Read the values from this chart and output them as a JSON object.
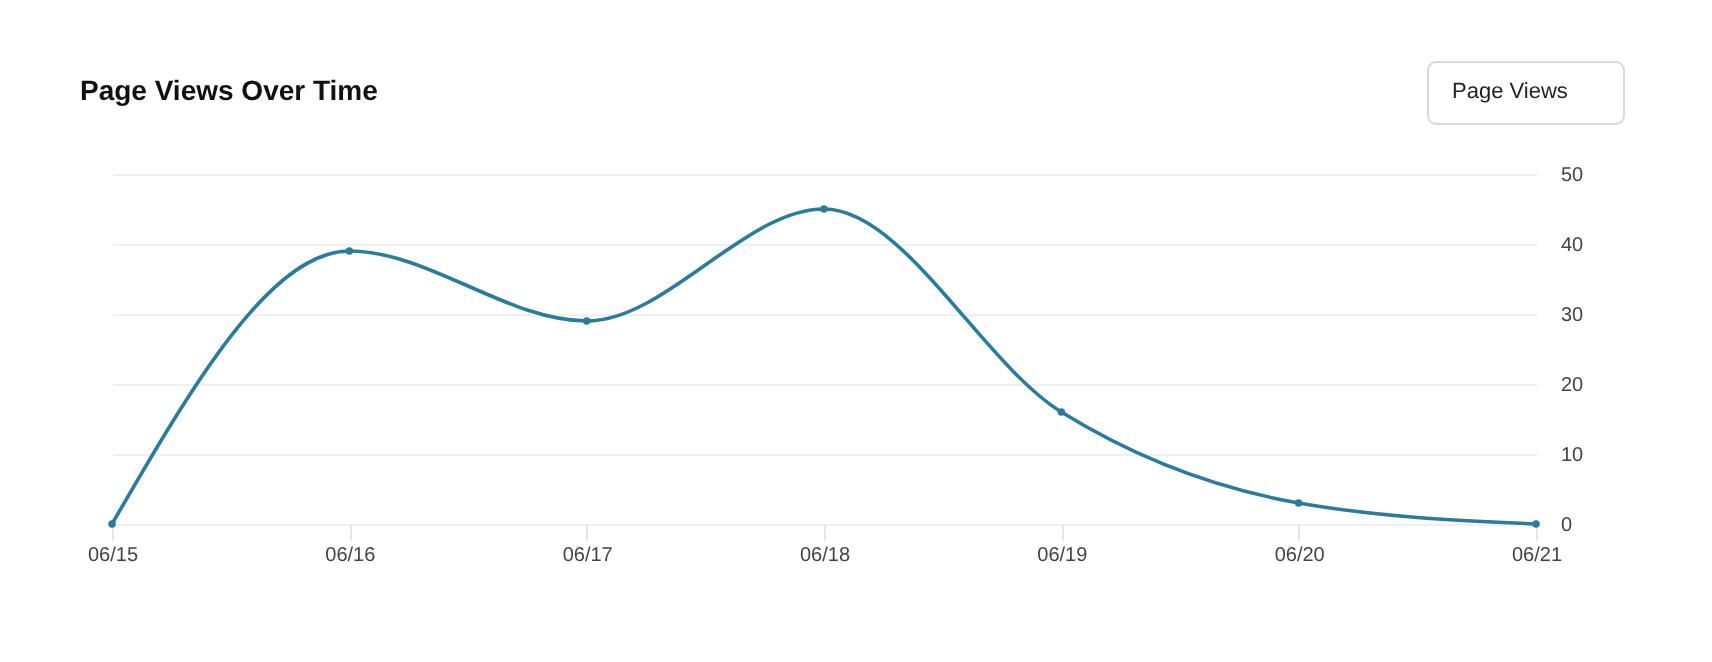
{
  "chart_data": {
    "type": "line",
    "title": "Page Views Over Time",
    "annotations": [
      "Page Views"
    ],
    "categories": [
      "06/15",
      "06/16",
      "06/17",
      "06/18",
      "06/19",
      "06/20",
      "06/21"
    ],
    "series": [
      {
        "color": "#2b7c9c",
        "values": [
          0,
          39,
          29,
          45,
          16,
          3,
          0
        ]
      }
    ],
    "ylim": [
      0,
      50
    ],
    "yticks": [
      0,
      10,
      20,
      30,
      40,
      50
    ],
    "grid": "y",
    "marker": "circle",
    "line_style": "solid",
    "legend": false
  }
}
